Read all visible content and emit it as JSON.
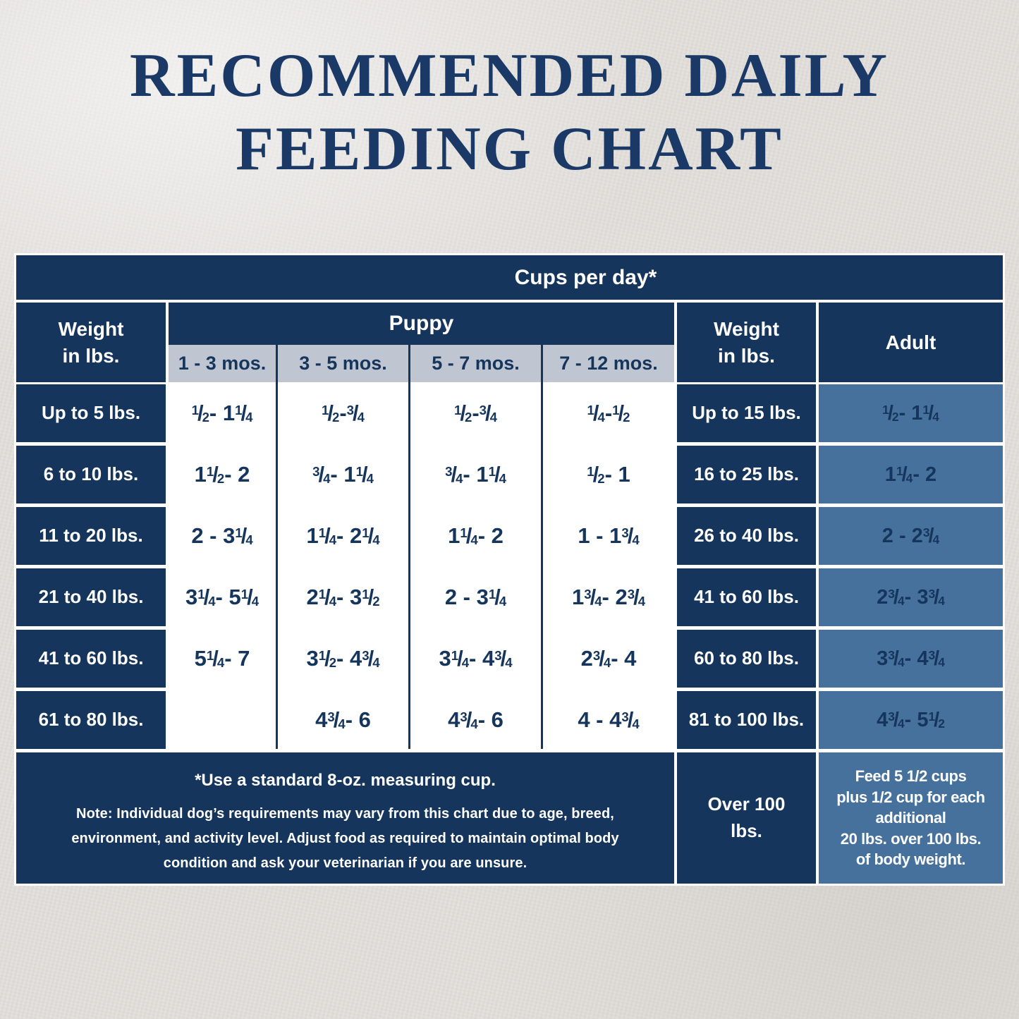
{
  "page_title": {
    "line1": "RECOMMENDED DAILY",
    "line2": "FEEDING CHART"
  },
  "colors": {
    "navy": "#15355c",
    "steel_blue": "#46719c",
    "gray_band": "#bfc6d1",
    "background": "#e1deda",
    "title": "#1b3966"
  },
  "chart_data": {
    "type": "table",
    "title": "RECOMMENDED DAILY FEEDING CHART",
    "units_header": "Cups per day*",
    "puppy_table": {
      "group_header": "Puppy",
      "weight_header": "Weight\nin lbs.",
      "age_columns": [
        "1 - 3 mos.",
        "3 - 5 mos.",
        "5 - 7 mos.",
        "7 - 12 mos."
      ],
      "rows": [
        {
          "weight": "Up to 5 lbs.",
          "values": [
            "1/2 - 1 1/4",
            "1/2 - 3/4",
            "1/2 - 3/4",
            "1/4 - 1/2"
          ]
        },
        {
          "weight": "6 to 10 lbs.",
          "values": [
            "1 1/2 - 2",
            "3/4 - 1 1/4",
            "3/4 - 1 1/4",
            "1/2 - 1"
          ]
        },
        {
          "weight": "11 to 20 lbs.",
          "values": [
            "2 - 3 1/4",
            "1 1/4 - 2 1/4",
            "1 1/4 - 2",
            "1 - 1 3/4"
          ]
        },
        {
          "weight": "21 to 40 lbs.",
          "values": [
            "3 1/4 - 5 1/4",
            "2 1/4 - 3 1/2",
            "2 - 3 1/4",
            "1 3/4 - 2 3/4"
          ]
        },
        {
          "weight": "41 to 60 lbs.",
          "values": [
            "5 1/4 - 7",
            "3 1/2 - 4 3/4",
            "3 1/4 - 4 3/4",
            "2 3/4 - 4"
          ]
        },
        {
          "weight": "61 to 80 lbs.",
          "values": [
            "",
            "4 3/4 - 6",
            "4 3/4 - 6",
            "4 - 4 3/4"
          ]
        }
      ]
    },
    "adult_table": {
      "group_header": "Adult",
      "weight_header": "Weight\nin lbs.",
      "rows": [
        {
          "weight": "Up to 15 lbs.",
          "value": "1/2 - 1 1/4"
        },
        {
          "weight": "16 to 25 lbs.",
          "value": "1 1/4 - 2"
        },
        {
          "weight": "26 to 40 lbs.",
          "value": "2 - 2 3/4"
        },
        {
          "weight": "41 to 60 lbs.",
          "value": "2 3/4 - 3 3/4"
        },
        {
          "weight": "60 to 80 lbs.",
          "value": "3 3/4 - 4 3/4"
        },
        {
          "weight": "81 to 100 lbs.",
          "value": "4 3/4 - 5 1/2"
        },
        {
          "weight": "Over 100\nlbs.",
          "value": "Feed 5 1/2 cups\nplus 1/2 cup for each\nadditional\n20 lbs. over 100 lbs.\nof body weight.",
          "multiline": true
        }
      ]
    },
    "footnotes": {
      "measuring_cup": "*Use a standard 8-oz. measuring cup.",
      "note": "Note: Individual dog’s requirements may vary from this chart due to age, breed,\nenvironment, and activity level. Adjust food as required to maintain optimal body\ncondition and ask your veterinarian if you are unsure."
    }
  }
}
